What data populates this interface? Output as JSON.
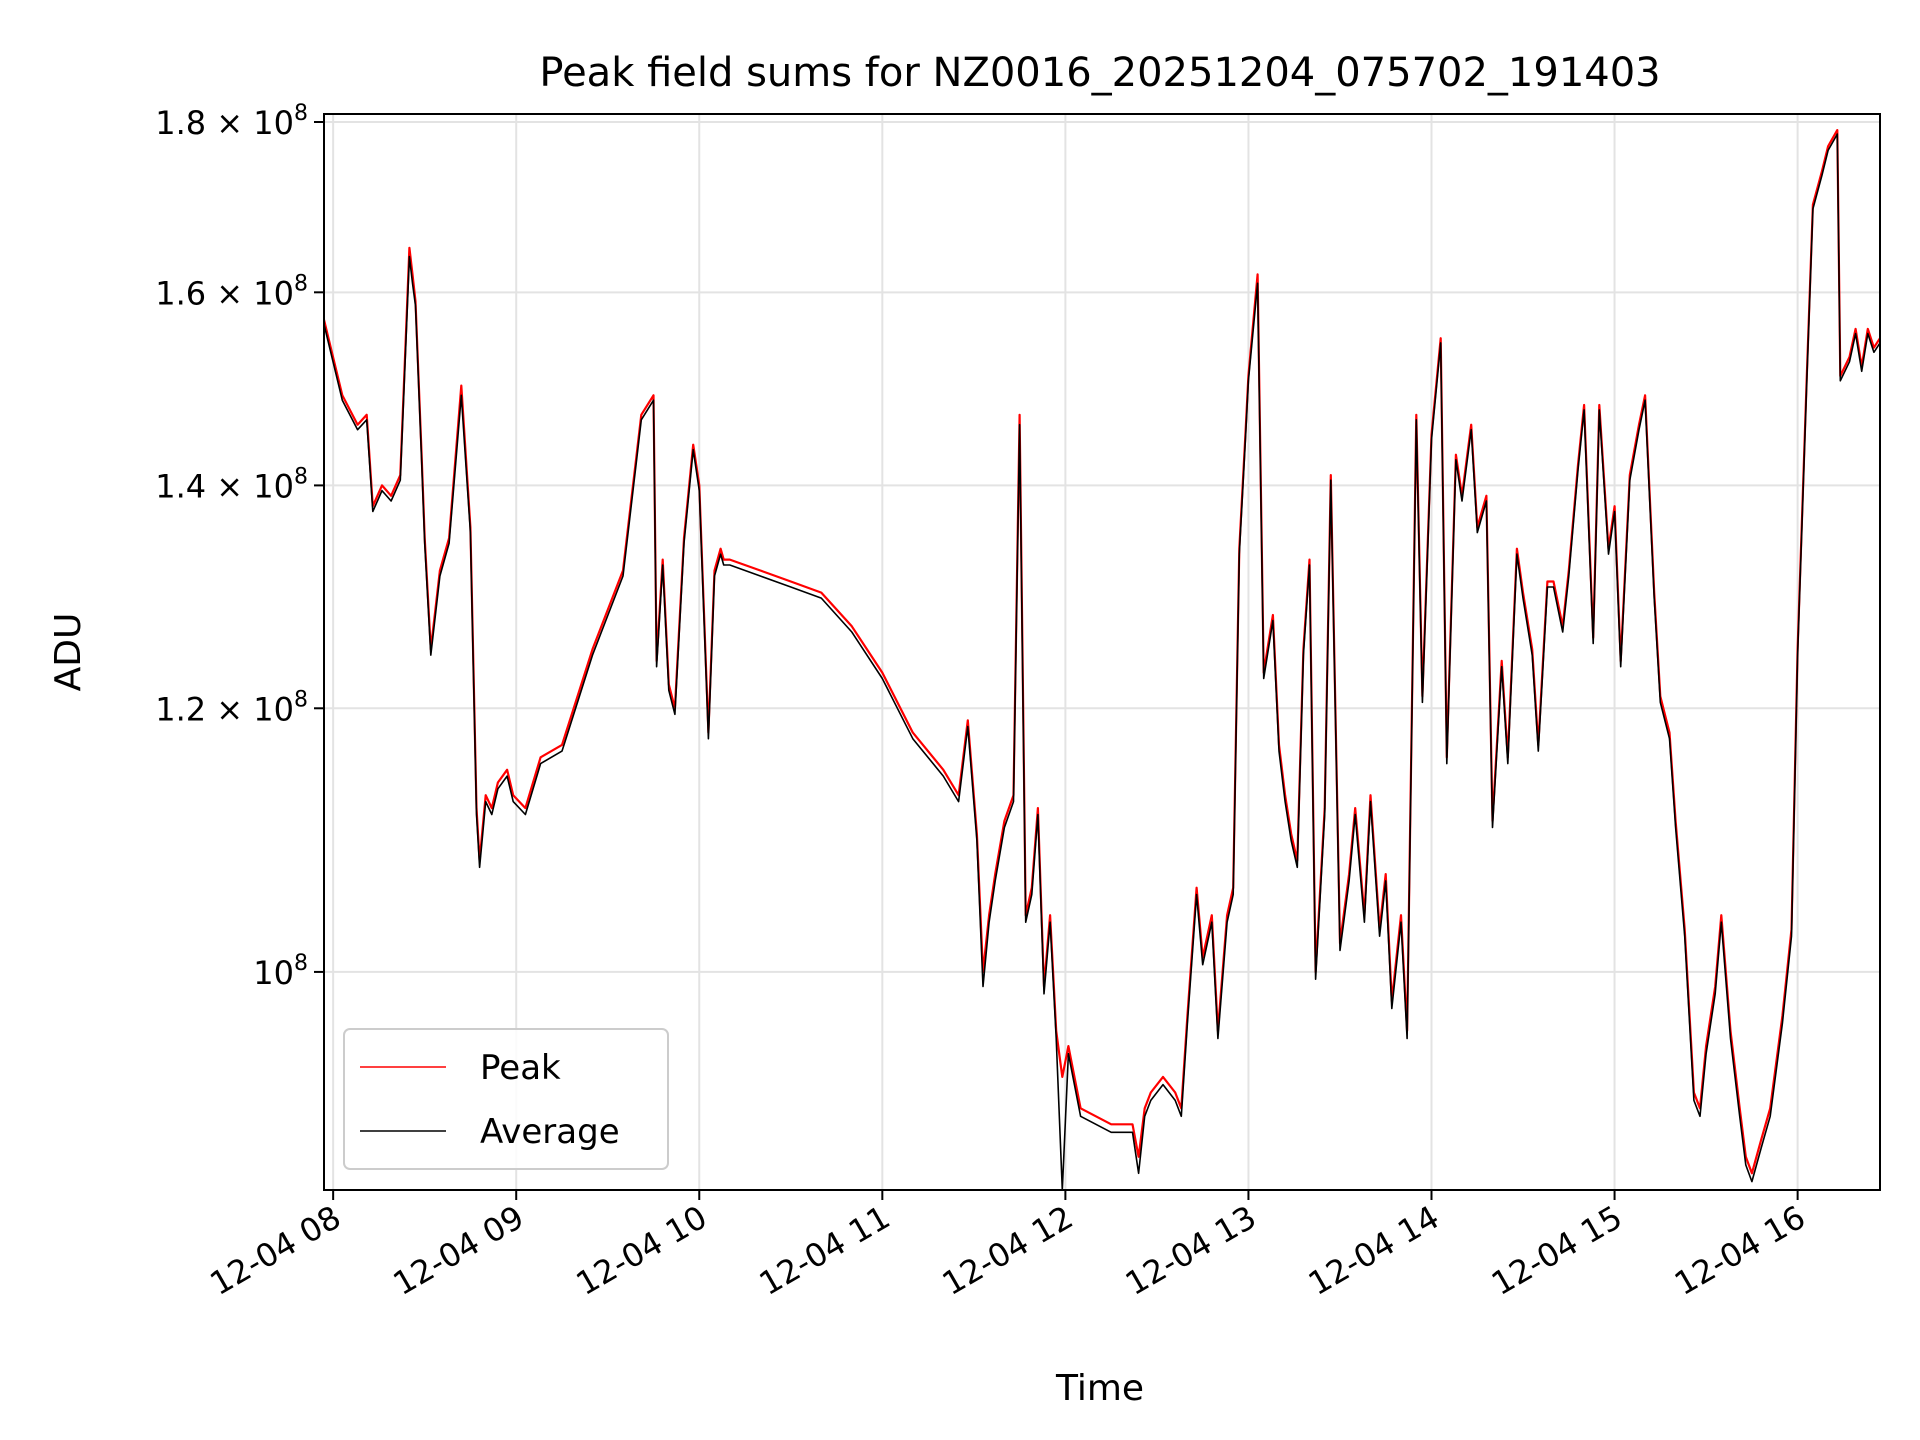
{
  "chart_data": {
    "type": "line",
    "title": "Peak field sums for NZ0016_20251204_075702_191403",
    "xlabel": "Time",
    "ylabel": "ADU",
    "y_scale": "log",
    "xlim": [
      "2025-12-04 07:57",
      "2025-12-04 16:27"
    ],
    "ylim": [
      86000000,
      181000000
    ],
    "x_ticks": [
      {
        "t": "2025-12-04 08:00",
        "label": "12-04 08"
      },
      {
        "t": "2025-12-04 09:00",
        "label": "12-04 09"
      },
      {
        "t": "2025-12-04 10:00",
        "label": "12-04 10"
      },
      {
        "t": "2025-12-04 11:00",
        "label": "12-04 11"
      },
      {
        "t": "2025-12-04 12:00",
        "label": "12-04 12"
      },
      {
        "t": "2025-12-04 13:00",
        "label": "12-04 13"
      },
      {
        "t": "2025-12-04 14:00",
        "label": "12-04 14"
      },
      {
        "t": "2025-12-04 15:00",
        "label": "12-04 15"
      },
      {
        "t": "2025-12-04 16:00",
        "label": "12-04 16"
      }
    ],
    "y_ticks": [
      {
        "v": 100000000,
        "mant": "",
        "exp": "8"
      },
      {
        "v": 120000000,
        "mant": "1.2",
        "exp": "8"
      },
      {
        "v": 140000000,
        "mant": "1.4",
        "exp": "8"
      },
      {
        "v": 160000000,
        "mant": "1.6",
        "exp": "8"
      },
      {
        "v": 180000000,
        "mant": "1.8",
        "exp": "8"
      }
    ],
    "grid": true,
    "legend_position": "lower-left",
    "series": [
      {
        "name": "Peak",
        "color": "#ff0000",
        "x": [
          "2025-12-04 07:57",
          "2025-12-04 08:03",
          "2025-12-04 08:08",
          "2025-12-04 08:11",
          "2025-12-04 08:13",
          "2025-12-04 08:16",
          "2025-12-04 08:19",
          "2025-12-04 08:22",
          "2025-12-04 08:25",
          "2025-12-04 08:26",
          "2025-12-04 08:27",
          "2025-12-04 08:29",
          "2025-12-04 08:30",
          "2025-12-04 08:32",
          "2025-12-04 08:35",
          "2025-12-04 08:38",
          "2025-12-04 08:42",
          "2025-12-04 08:45",
          "2025-12-04 08:47",
          "2025-12-04 08:48",
          "2025-12-04 08:50",
          "2025-12-04 08:52",
          "2025-12-04 08:54",
          "2025-12-04 08:57",
          "2025-12-04 08:59",
          "2025-12-04 09:03",
          "2025-12-04 09:08",
          "2025-12-04 09:15",
          "2025-12-04 09:25",
          "2025-12-04 09:35",
          "2025-12-04 09:41",
          "2025-12-04 09:45",
          "2025-12-04 09:46",
          "2025-12-04 09:48",
          "2025-12-04 09:50",
          "2025-12-04 09:52",
          "2025-12-04 09:55",
          "2025-12-04 09:58",
          "2025-12-04 10:00",
          "2025-12-04 10:03",
          "2025-12-04 10:05",
          "2025-12-04 10:07",
          "2025-12-04 10:08",
          "2025-12-04 10:10",
          "2025-12-04 10:20",
          "2025-12-04 10:30",
          "2025-12-04 10:40",
          "2025-12-04 10:50",
          "2025-12-04 11:00",
          "2025-12-04 11:10",
          "2025-12-04 11:20",
          "2025-12-04 11:25",
          "2025-12-04 11:28",
          "2025-12-04 11:31",
          "2025-12-04 11:33",
          "2025-12-04 11:35",
          "2025-12-04 11:37",
          "2025-12-04 11:40",
          "2025-12-04 11:43",
          "2025-12-04 11:45",
          "2025-12-04 11:47",
          "2025-12-04 11:49",
          "2025-12-04 11:51",
          "2025-12-04 11:53",
          "2025-12-04 11:55",
          "2025-12-04 11:57",
          "2025-12-04 11:59",
          "2025-12-04 12:01",
          "2025-12-04 12:05",
          "2025-12-04 12:15",
          "2025-12-04 12:22",
          "2025-12-04 12:24",
          "2025-12-04 12:26",
          "2025-12-04 12:28",
          "2025-12-04 12:32",
          "2025-12-04 12:36",
          "2025-12-04 12:38",
          "2025-12-04 12:40",
          "2025-12-04 12:43",
          "2025-12-04 12:45",
          "2025-12-04 12:48",
          "2025-12-04 12:50",
          "2025-12-04 12:53",
          "2025-12-04 12:55",
          "2025-12-04 12:57",
          "2025-12-04 12:59",
          "2025-12-04 13:00",
          "2025-12-04 13:03",
          "2025-12-04 13:05",
          "2025-12-04 13:08",
          "2025-12-04 13:10",
          "2025-12-04 13:12",
          "2025-12-04 13:14",
          "2025-12-04 13:16",
          "2025-12-04 13:18",
          "2025-12-04 13:20",
          "2025-12-04 13:22",
          "2025-12-04 13:25",
          "2025-12-04 13:27",
          "2025-12-04 13:30",
          "2025-12-04 13:33",
          "2025-12-04 13:35",
          "2025-12-04 13:38",
          "2025-12-04 13:40",
          "2025-12-04 13:43",
          "2025-12-04 13:45",
          "2025-12-04 13:47",
          "2025-12-04 13:50",
          "2025-12-04 13:52",
          "2025-12-04 13:55",
          "2025-12-04 13:57",
          "2025-12-04 14:00",
          "2025-12-04 14:03",
          "2025-12-04 14:05",
          "2025-12-04 14:08",
          "2025-12-04 14:10",
          "2025-12-04 14:13",
          "2025-12-04 14:15",
          "2025-12-04 14:18",
          "2025-12-04 14:20",
          "2025-12-04 14:23",
          "2025-12-04 14:25",
          "2025-12-04 14:28",
          "2025-12-04 14:30",
          "2025-12-04 14:33",
          "2025-12-04 14:35",
          "2025-12-04 14:38",
          "2025-12-04 14:40",
          "2025-12-04 14:43",
          "2025-12-04 14:45",
          "2025-12-04 14:48",
          "2025-12-04 14:50",
          "2025-12-04 14:53",
          "2025-12-04 14:55",
          "2025-12-04 14:58",
          "2025-12-04 15:00",
          "2025-12-04 15:02",
          "2025-12-04 15:05",
          "2025-12-04 15:08",
          "2025-12-04 15:10",
          "2025-12-04 15:13",
          "2025-12-04 15:15",
          "2025-12-04 15:18",
          "2025-12-04 15:20",
          "2025-12-04 15:23",
          "2025-12-04 15:26",
          "2025-12-04 15:28",
          "2025-12-04 15:30",
          "2025-12-04 15:33",
          "2025-12-04 15:35",
          "2025-12-04 15:38",
          "2025-12-04 15:41",
          "2025-12-04 15:43",
          "2025-12-04 15:45",
          "2025-12-04 15:48",
          "2025-12-04 15:51",
          "2025-12-04 15:55",
          "2025-12-04 15:58",
          "2025-12-04 16:00",
          "2025-12-04 16:03",
          "2025-12-04 16:05",
          "2025-12-04 16:08",
          "2025-12-04 16:10",
          "2025-12-04 16:13",
          "2025-12-04 16:14",
          "2025-12-04 16:17",
          "2025-12-04 16:19",
          "2025-12-04 16:21",
          "2025-12-04 16:23",
          "2025-12-04 16:25",
          "2025-12-04 16:27"
        ],
        "values": [
          157000000,
          149000000,
          146000000,
          147000000,
          138000000,
          140000000,
          139000000,
          141000000,
          165000000,
          162000000,
          159000000,
          143000000,
          135000000,
          125000000,
          132000000,
          135000000,
          150000000,
          136000000,
          112000000,
          108000000,
          113000000,
          112000000,
          114000000,
          115000000,
          113000000,
          112000000,
          116000000,
          117000000,
          125000000,
          132000000,
          147000000,
          149000000,
          124000000,
          133000000,
          122000000,
          120000000,
          135000000,
          144000000,
          140000000,
          118000000,
          132000000,
          134000000,
          133000000,
          133000000,
          132000000,
          131000000,
          130000000,
          127000000,
          123000000,
          118000000,
          115000000,
          113000000,
          119000000,
          110000000,
          100000000,
          104000000,
          107000000,
          111000000,
          113000000,
          147000000,
          104000000,
          106000000,
          112000000,
          99000000,
          104000000,
          96000000,
          93000000,
          95000000,
          91000000,
          90000000,
          90000000,
          88000000,
          91000000,
          92000000,
          93000000,
          92000000,
          91000000,
          97000000,
          106000000,
          101000000,
          104000000,
          96000000,
          104000000,
          106000000,
          134000000,
          145000000,
          151000000,
          162000000,
          123000000,
          128000000,
          117000000,
          113000000,
          110000000,
          108000000,
          125000000,
          133000000,
          100000000,
          112000000,
          141000000,
          102000000,
          107000000,
          112000000,
          104000000,
          113000000,
          103000000,
          107000000,
          98000000,
          104000000,
          96000000,
          147000000,
          121000000,
          145000000,
          155000000,
          116000000,
          143000000,
          139000000,
          146000000,
          136000000,
          139000000,
          111000000,
          124000000,
          116000000,
          134000000,
          130000000,
          125000000,
          117000000,
          131000000,
          131000000,
          127000000,
          132000000,
          142000000,
          148000000,
          126000000,
          148000000,
          134000000,
          138000000,
          124000000,
          141000000,
          146000000,
          149000000,
          130000000,
          121000000,
          118000000,
          111000000,
          103000000,
          92000000,
          91000000,
          95000000,
          99000000,
          104000000,
          96000000,
          91000000,
          88000000,
          87000000,
          89000000,
          91000000,
          97000000,
          103000000,
          125000000,
          151000000,
          170000000,
          174000000,
          177000000,
          179000000,
          151000000,
          153000000,
          156000000,
          152000000,
          156000000,
          154000000,
          155000000
        ]
      },
      {
        "name": "Average",
        "color": "#000000",
        "x": [
          "2025-12-04 07:57",
          "2025-12-04 08:03",
          "2025-12-04 08:08",
          "2025-12-04 08:11",
          "2025-12-04 08:13",
          "2025-12-04 08:16",
          "2025-12-04 08:19",
          "2025-12-04 08:22",
          "2025-12-04 08:25",
          "2025-12-04 08:26",
          "2025-12-04 08:27",
          "2025-12-04 08:29",
          "2025-12-04 08:30",
          "2025-12-04 08:32",
          "2025-12-04 08:35",
          "2025-12-04 08:38",
          "2025-12-04 08:42",
          "2025-12-04 08:45",
          "2025-12-04 08:47",
          "2025-12-04 08:48",
          "2025-12-04 08:50",
          "2025-12-04 08:52",
          "2025-12-04 08:54",
          "2025-12-04 08:57",
          "2025-12-04 08:59",
          "2025-12-04 09:03",
          "2025-12-04 09:08",
          "2025-12-04 09:15",
          "2025-12-04 09:25",
          "2025-12-04 09:35",
          "2025-12-04 09:41",
          "2025-12-04 09:45",
          "2025-12-04 09:46",
          "2025-12-04 09:48",
          "2025-12-04 09:50",
          "2025-12-04 09:52",
          "2025-12-04 09:55",
          "2025-12-04 09:58",
          "2025-12-04 10:00",
          "2025-12-04 10:03",
          "2025-12-04 10:05",
          "2025-12-04 10:07",
          "2025-12-04 10:08",
          "2025-12-04 10:10",
          "2025-12-04 10:20",
          "2025-12-04 10:30",
          "2025-12-04 10:40",
          "2025-12-04 10:50",
          "2025-12-04 11:00",
          "2025-12-04 11:10",
          "2025-12-04 11:20",
          "2025-12-04 11:25",
          "2025-12-04 11:28",
          "2025-12-04 11:31",
          "2025-12-04 11:33",
          "2025-12-04 11:35",
          "2025-12-04 11:37",
          "2025-12-04 11:40",
          "2025-12-04 11:43",
          "2025-12-04 11:45",
          "2025-12-04 11:47",
          "2025-12-04 11:49",
          "2025-12-04 11:51",
          "2025-12-04 11:53",
          "2025-12-04 11:55",
          "2025-12-04 11:57",
          "2025-12-04 11:59",
          "2025-12-04 12:01",
          "2025-12-04 12:05",
          "2025-12-04 12:15",
          "2025-12-04 12:22",
          "2025-12-04 12:24",
          "2025-12-04 12:26",
          "2025-12-04 12:28",
          "2025-12-04 12:32",
          "2025-12-04 12:36",
          "2025-12-04 12:38",
          "2025-12-04 12:40",
          "2025-12-04 12:43",
          "2025-12-04 12:45",
          "2025-12-04 12:48",
          "2025-12-04 12:50",
          "2025-12-04 12:53",
          "2025-12-04 12:55",
          "2025-12-04 12:57",
          "2025-12-04 12:59",
          "2025-12-04 13:00",
          "2025-12-04 13:03",
          "2025-12-04 13:05",
          "2025-12-04 13:08",
          "2025-12-04 13:10",
          "2025-12-04 13:12",
          "2025-12-04 13:14",
          "2025-12-04 13:16",
          "2025-12-04 13:18",
          "2025-12-04 13:20",
          "2025-12-04 13:22",
          "2025-12-04 13:25",
          "2025-12-04 13:27",
          "2025-12-04 13:30",
          "2025-12-04 13:33",
          "2025-12-04 13:35",
          "2025-12-04 13:38",
          "2025-12-04 13:40",
          "2025-12-04 13:43",
          "2025-12-04 13:45",
          "2025-12-04 13:47",
          "2025-12-04 13:50",
          "2025-12-04 13:52",
          "2025-12-04 13:55",
          "2025-12-04 13:57",
          "2025-12-04 14:00",
          "2025-12-04 14:03",
          "2025-12-04 14:05",
          "2025-12-04 14:08",
          "2025-12-04 14:10",
          "2025-12-04 14:13",
          "2025-12-04 14:15",
          "2025-12-04 14:18",
          "2025-12-04 14:20",
          "2025-12-04 14:23",
          "2025-12-04 14:25",
          "2025-12-04 14:28",
          "2025-12-04 14:30",
          "2025-12-04 14:33",
          "2025-12-04 14:35",
          "2025-12-04 14:38",
          "2025-12-04 14:40",
          "2025-12-04 14:43",
          "2025-12-04 14:45",
          "2025-12-04 14:48",
          "2025-12-04 14:50",
          "2025-12-04 14:53",
          "2025-12-04 14:55",
          "2025-12-04 14:58",
          "2025-12-04 15:00",
          "2025-12-04 15:02",
          "2025-12-04 15:05",
          "2025-12-04 15:08",
          "2025-12-04 15:10",
          "2025-12-04 15:13",
          "2025-12-04 15:15",
          "2025-12-04 15:18",
          "2025-12-04 15:20",
          "2025-12-04 15:23",
          "2025-12-04 15:26",
          "2025-12-04 15:28",
          "2025-12-04 15:30",
          "2025-12-04 15:33",
          "2025-12-04 15:35",
          "2025-12-04 15:38",
          "2025-12-04 15:41",
          "2025-12-04 15:43",
          "2025-12-04 15:45",
          "2025-12-04 15:48",
          "2025-12-04 15:51",
          "2025-12-04 15:55",
          "2025-12-04 15:58",
          "2025-12-04 16:00",
          "2025-12-04 16:03",
          "2025-12-04 16:05",
          "2025-12-04 16:08",
          "2025-12-04 16:10",
          "2025-12-04 16:13",
          "2025-12-04 16:14",
          "2025-12-04 16:17",
          "2025-12-04 16:19",
          "2025-12-04 16:21",
          "2025-12-04 16:23",
          "2025-12-04 16:25",
          "2025-12-04 16:27"
        ],
        "values": [
          156500000,
          148500000,
          145500000,
          146500000,
          137500000,
          139500000,
          138500000,
          140500000,
          164000000,
          161000000,
          158500000,
          142500000,
          134500000,
          124500000,
          131500000,
          134500000,
          149000000,
          135500000,
          111500000,
          107500000,
          112500000,
          111500000,
          113500000,
          114500000,
          112500000,
          111500000,
          115500000,
          116500000,
          124500000,
          131500000,
          146500000,
          148500000,
          123500000,
          132500000,
          121500000,
          119500000,
          134500000,
          143500000,
          139500000,
          117500000,
          131500000,
          133500000,
          132500000,
          132500000,
          131500000,
          130500000,
          129500000,
          126500000,
          122500000,
          117500000,
          114500000,
          112500000,
          118500000,
          109500000,
          99000000,
          103500000,
          106500000,
          110500000,
          112500000,
          146000000,
          103500000,
          105500000,
          111500000,
          98500000,
          103500000,
          95500000,
          86000000,
          94500000,
          90500000,
          89500000,
          89500000,
          87000000,
          90500000,
          91500000,
          92500000,
          91500000,
          90500000,
          96500000,
          105500000,
          100500000,
          103500000,
          95500000,
          103500000,
          105500000,
          133500000,
          144500000,
          150500000,
          161000000,
          122500000,
          127500000,
          116500000,
          112500000,
          109500000,
          107500000,
          124500000,
          132500000,
          99500000,
          111500000,
          140500000,
          101500000,
          106500000,
          111500000,
          103500000,
          112500000,
          102500000,
          106500000,
          97500000,
          103500000,
          95500000,
          146500000,
          120500000,
          144500000,
          154500000,
          115500000,
          142500000,
          138500000,
          145500000,
          135500000,
          138500000,
          110500000,
          123500000,
          115500000,
          133500000,
          129500000,
          124500000,
          116500000,
          130500000,
          130500000,
          126500000,
          131500000,
          141500000,
          147500000,
          125500000,
          147500000,
          133500000,
          137500000,
          123500000,
          140500000,
          145500000,
          148500000,
          129500000,
          120500000,
          117500000,
          110500000,
          102500000,
          91500000,
          90500000,
          94500000,
          98500000,
          103500000,
          95500000,
          90500000,
          87500000,
          86500000,
          88500000,
          90500000,
          96500000,
          102500000,
          124500000,
          150500000,
          169500000,
          173500000,
          176500000,
          178500000,
          150500000,
          152500000,
          155500000,
          151500000,
          155500000,
          153500000,
          154500000
        ]
      }
    ]
  }
}
